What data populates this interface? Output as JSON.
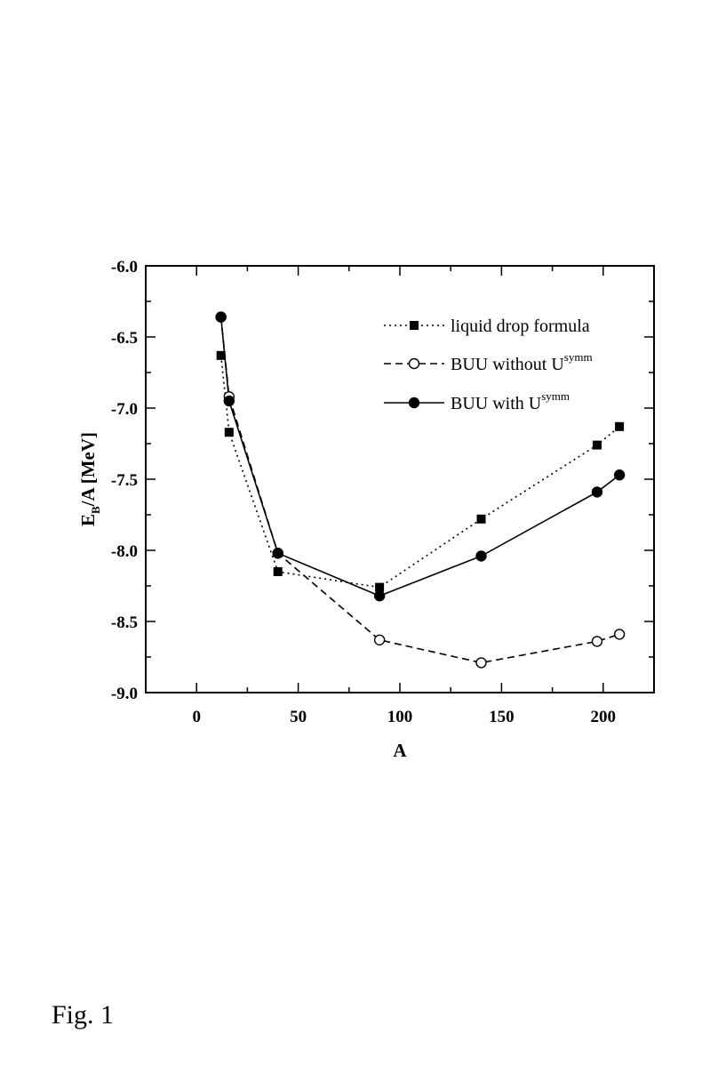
{
  "figure": {
    "caption": "Fig. 1"
  },
  "chart_data": {
    "type": "line",
    "xlabel": "A",
    "ylabel": {
      "base": "E",
      "subscript": "B",
      "rest": "/A [MeV]"
    },
    "xlim": [
      -25,
      225
    ],
    "ylim": [
      -9.0,
      -6.0
    ],
    "xticks": [
      0,
      50,
      100,
      150,
      200
    ],
    "xtick_labels": [
      "0",
      "50",
      "100",
      "150",
      "200"
    ],
    "yticks": [
      -9.0,
      -8.5,
      -8.0,
      -7.5,
      -7.0,
      -6.5,
      -6.0
    ],
    "ytick_labels": [
      "-9.0",
      "-8.5",
      "-8.0",
      "-7.5",
      "-7.0",
      "-6.5",
      "-6.0"
    ],
    "legend_position": "top-right",
    "series": [
      {
        "name": "liquid drop formula",
        "label": "liquid drop formula",
        "label_sup": "",
        "marker": "filled-square",
        "line_style": "dotted",
        "x": [
          12,
          16,
          40,
          90,
          140,
          197,
          208
        ],
        "y": [
          -6.63,
          -7.17,
          -8.15,
          -8.26,
          -7.78,
          -7.26,
          -7.13
        ]
      },
      {
        "name": "BUU without U^symm",
        "label": "BUU without U",
        "label_sup": "symm",
        "marker": "open-circle",
        "line_style": "dashed",
        "x": [
          12,
          16,
          40,
          90,
          140,
          197,
          208
        ],
        "y": [
          -6.36,
          -6.92,
          -8.02,
          -8.63,
          -8.79,
          -8.64,
          -8.59
        ]
      },
      {
        "name": "BUU with U^symm",
        "label": "BUU with U",
        "label_sup": "symm",
        "marker": "filled-circle",
        "line_style": "solid",
        "x": [
          12,
          16,
          40,
          90,
          140,
          197,
          208
        ],
        "y": [
          -6.36,
          -6.95,
          -8.02,
          -8.32,
          -8.04,
          -7.59,
          -7.47
        ]
      }
    ]
  }
}
